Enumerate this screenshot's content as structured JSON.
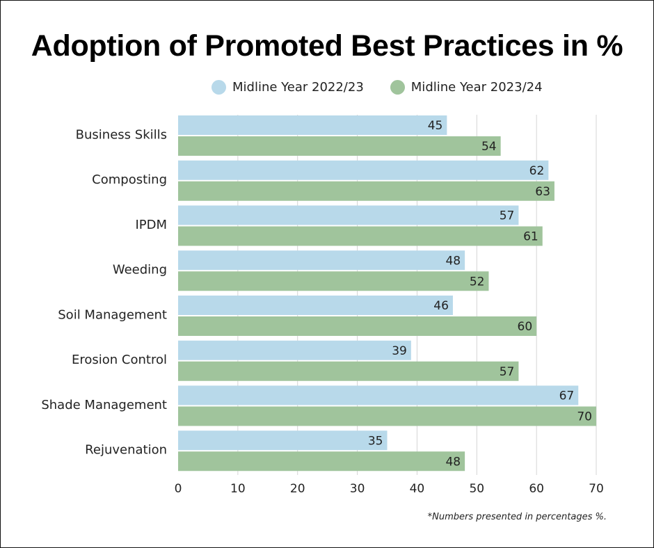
{
  "chart_data": {
    "type": "bar",
    "orientation": "horizontal",
    "title": "Adoption of Promoted Best Practices in %",
    "categories": [
      "Business Skills",
      "Composting",
      "IPDM",
      "Weeding",
      "Soil Management",
      "Erosion Control",
      "Shade Management",
      "Rejuvenation"
    ],
    "series": [
      {
        "name": "Midline Year 2022/23",
        "color": "#b8d9ea",
        "values": [
          45,
          62,
          57,
          48,
          46,
          39,
          67,
          35
        ]
      },
      {
        "name": "Midline Year 2023/24",
        "color": "#a0c49c",
        "values": [
          54,
          63,
          61,
          52,
          60,
          57,
          70,
          48
        ]
      }
    ],
    "xlabel": "",
    "ylabel": "",
    "xlim": [
      0,
      70
    ],
    "xticks": [
      0,
      10,
      20,
      30,
      40,
      50,
      60,
      70
    ],
    "grid": true,
    "legend_position": "top-center",
    "data_labels": true,
    "footnote": "*Numbers presented in percentages %."
  }
}
